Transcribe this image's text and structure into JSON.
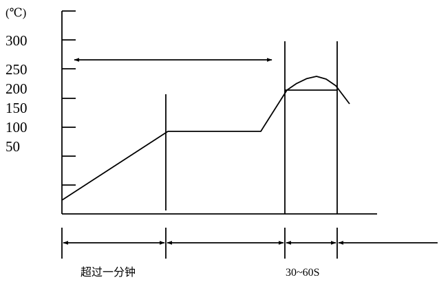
{
  "chart_data": {
    "type": "line",
    "unit_label": "(℃)",
    "y_ticks": [
      "300",
      "250",
      "200",
      "150",
      "100",
      "50"
    ],
    "y_tick_values": [
      300,
      250,
      200,
      150,
      100,
      50
    ],
    "ylim": [
      0,
      340
    ],
    "grid": false,
    "series": [
      {
        "points": [
          {
            "t": 0,
            "y": 25
          },
          {
            "t": 154,
            "y": 150
          },
          {
            "t": 289,
            "y": 150
          },
          {
            "t": 327,
            "y": 225
          },
          {
            "t": 341,
            "y": 237
          },
          {
            "t": 356,
            "y": 246
          },
          {
            "t": 370,
            "y": 250
          },
          {
            "t": 384,
            "y": 245
          },
          {
            "t": 398,
            "y": 233
          },
          {
            "t": 418,
            "y": 200
          }
        ]
      }
    ],
    "threshold_value": 225,
    "annotations": {
      "top_arrow": "",
      "segments": [
        {
          "label": "超过一分钟"
        },
        {
          "label": ""
        },
        {
          "label": "30~60S"
        },
        {
          "label": ""
        }
      ]
    }
  }
}
